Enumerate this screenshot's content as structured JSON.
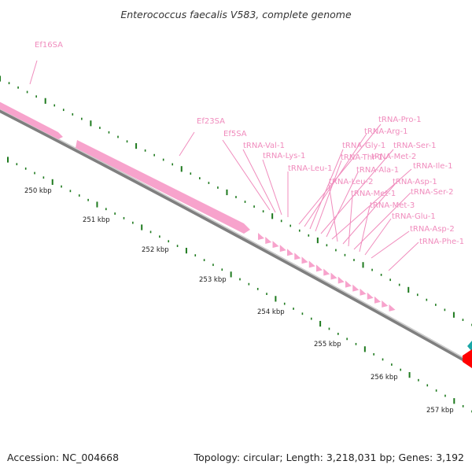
{
  "title": "Enterococcus faecalis V583, complete genome",
  "footer": {
    "accession": "Accession: NC_004668",
    "summary": "Topology: circular; Length: 3,218,031 bp; Genes: 3,192"
  },
  "colors": {
    "feature_pink": "#f7a3cc",
    "label_pink": "#f08cbd",
    "tick_green": "#1e7a1e",
    "backbone_gray": "#7f7f7f",
    "accent_red": "#ff0000",
    "accent_teal": "#1aa6a6"
  },
  "kbp_ticks": [
    "250 kbp",
    "251 kbp",
    "252 kbp",
    "253 kbp",
    "254 kbp",
    "255 kbp",
    "256 kbp",
    "257 kbp"
  ],
  "rrna_labels": [
    "Ef16SA",
    "Ef23SA",
    "Ef5SA"
  ],
  "trna_labels": [
    "tRNA-Val-1",
    "tRNA-Lys-1",
    "tRNA-Leu-1",
    "tRNA-Pro-1",
    "tRNA-Arg-1",
    "tRNA-Gly-1",
    "tRNA-Thr-1",
    "tRNA-Ser-1",
    "tRNA-Met-2",
    "tRNA-Ala-1",
    "tRNA-Ile-1",
    "tRNA-Leu-2",
    "tRNA-Asp-1",
    "tRNA-Met-1",
    "tRNA-Ser-2",
    "tRNA-Met-3",
    "tRNA-Glu-1",
    "tRNA-Asp-2",
    "tRNA-Phe-1"
  ]
}
